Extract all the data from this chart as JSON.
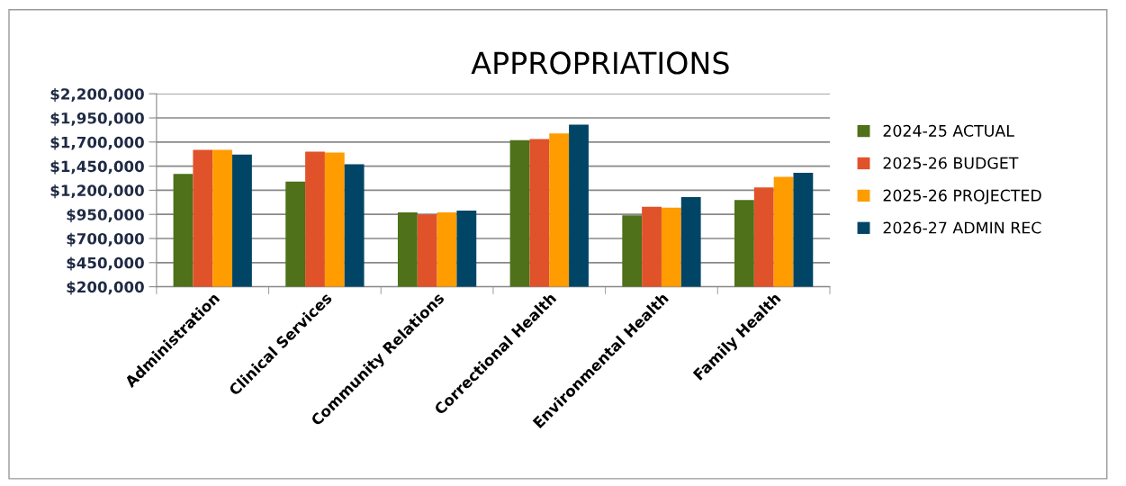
{
  "chart_data": {
    "type": "bar",
    "title": "APPROPRIATIONS",
    "categories": [
      "Administration",
      "Clinical Services",
      "Community Relations",
      "Correctional Health",
      "Environmental Health",
      "Family Health"
    ],
    "series": [
      {
        "name": "2024-25 ACTUAL",
        "color": "#4e7119",
        "values": [
          1370000,
          1290000,
          970000,
          1720000,
          940000,
          1100000
        ]
      },
      {
        "name": "2025-26 BUDGET",
        "color": "#e0522a",
        "values": [
          1620000,
          1600000,
          950000,
          1730000,
          1030000,
          1230000
        ]
      },
      {
        "name": "2025-26 PROJECTED",
        "color": "#ff9c00",
        "values": [
          1620000,
          1590000,
          970000,
          1790000,
          1020000,
          1340000
        ]
      },
      {
        "name": "2026-27 ADMIN REC",
        "color": "#004565",
        "values": [
          1570000,
          1470000,
          990000,
          1880000,
          1130000,
          1380000
        ]
      }
    ],
    "ylim": [
      200000,
      2200000
    ],
    "yticks": [
      {
        "value": 200000,
        "label": "$200,000"
      },
      {
        "value": 450000,
        "label": "$450,000"
      },
      {
        "value": 700000,
        "label": "$700,000"
      },
      {
        "value": 950000,
        "label": "$950,000"
      },
      {
        "value": 1200000,
        "label": "$1,200,000"
      },
      {
        "value": 1450000,
        "label": "$1,450,000"
      },
      {
        "value": 1700000,
        "label": "$1,700,000"
      },
      {
        "value": 1950000,
        "label": "$1,950,000"
      },
      {
        "value": 2200000,
        "label": "$2,200,000"
      }
    ],
    "grid": "y",
    "legend": "right"
  }
}
